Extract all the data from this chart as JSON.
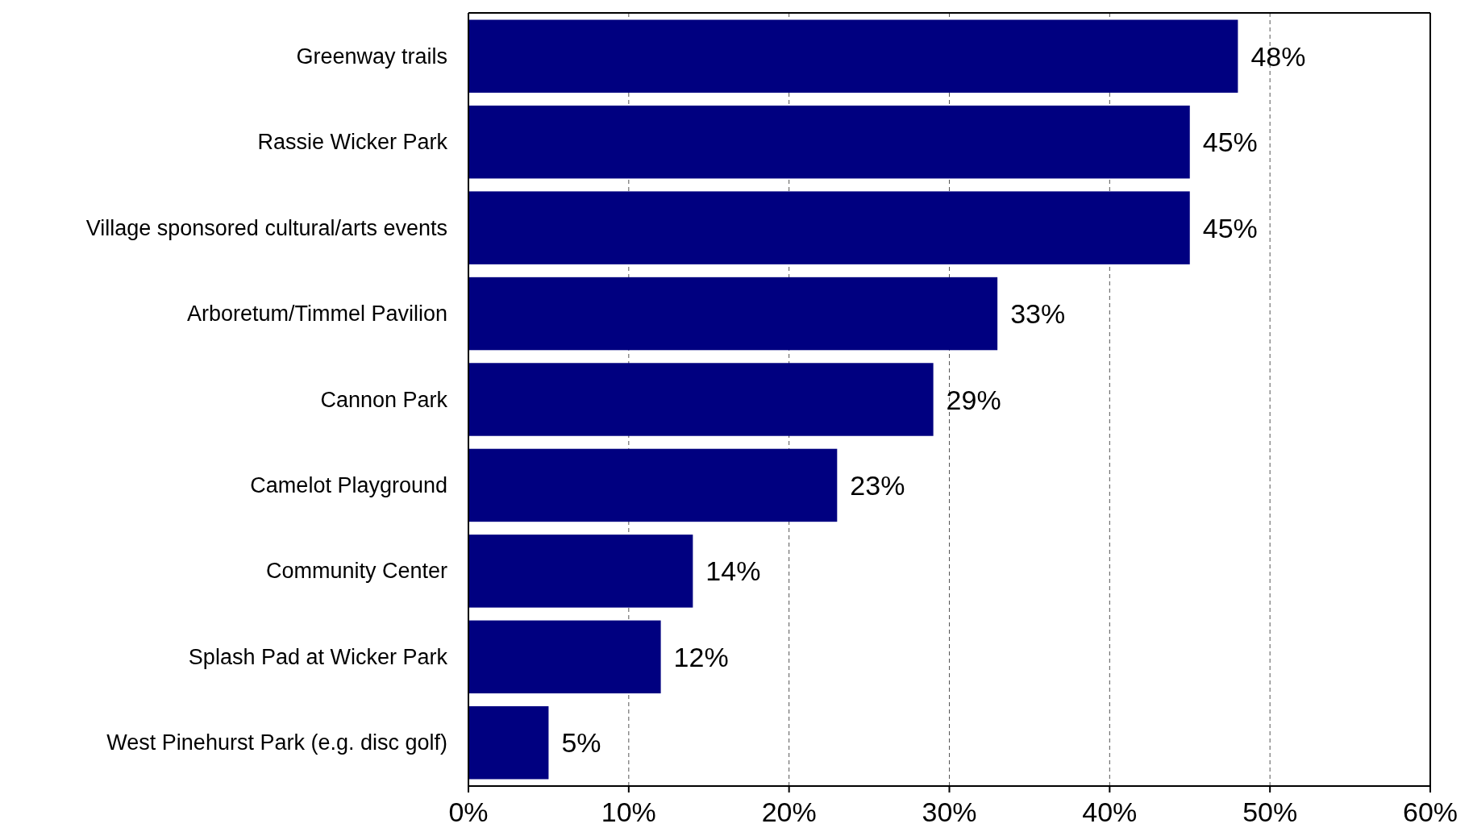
{
  "chart_data": {
    "type": "bar",
    "orientation": "horizontal",
    "categories": [
      "Greenway trails",
      "Rassie Wicker Park",
      "Village sponsored cultural/arts events",
      "Arboretum/Timmel Pavilion",
      "Cannon Park",
      "Camelot Playground",
      "Community Center",
      "Splash Pad at Wicker Park",
      "West Pinehurst Park (e.g. disc golf)"
    ],
    "values": [
      48,
      45,
      45,
      33,
      29,
      23,
      14,
      12,
      5
    ],
    "value_labels": [
      "48%",
      "45%",
      "45%",
      "33%",
      "29%",
      "23%",
      "14%",
      "12%",
      "5%"
    ],
    "color": "#000080",
    "xlim": [
      0,
      60
    ],
    "xticks": [
      {
        "value": 0,
        "label": "0%"
      },
      {
        "value": 10,
        "label": "10%"
      },
      {
        "value": 20,
        "label": "20%"
      },
      {
        "value": 30,
        "label": "30%"
      },
      {
        "value": 40,
        "label": "40%"
      },
      {
        "value": 50,
        "label": "50%"
      },
      {
        "value": 60,
        "label": "60%"
      }
    ],
    "grid": "x"
  }
}
